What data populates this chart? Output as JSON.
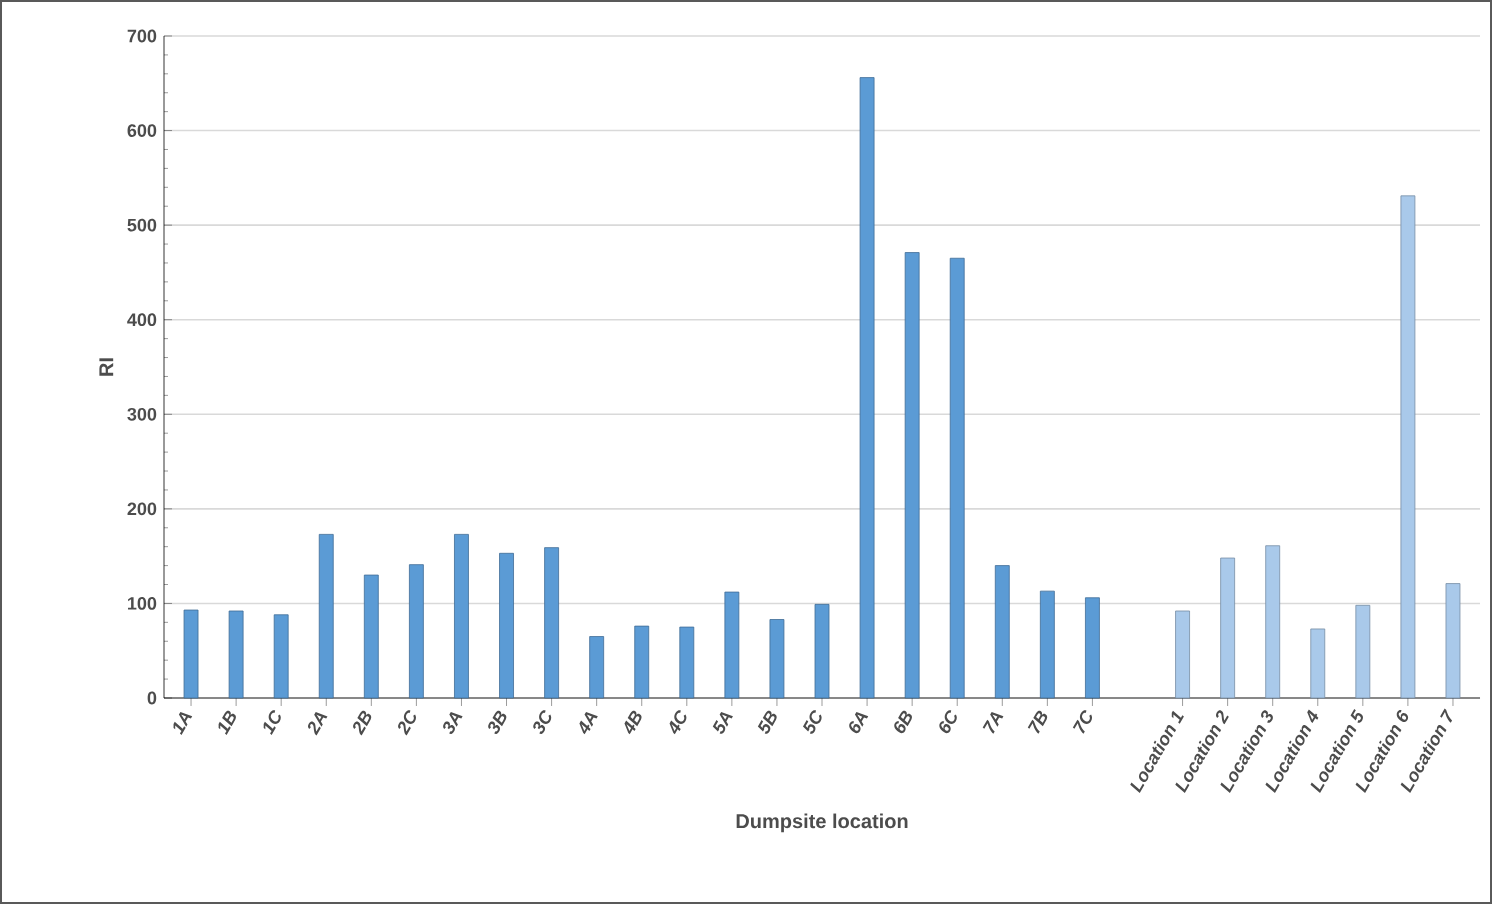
{
  "chart_data": {
    "type": "bar",
    "xlabel": "Dumpsite location",
    "ylabel": "RI",
    "categories": [
      "1A",
      "1B",
      "1C",
      "2A",
      "2B",
      "2C",
      "3A",
      "3B",
      "3C",
      "4A",
      "4B",
      "4C",
      "5A",
      "5B",
      "5C",
      "6A",
      "6B",
      "6C",
      "7A",
      "7B",
      "7C",
      null,
      "Location 1",
      "Location 2",
      "Location 3",
      "Location 4",
      "Location 5",
      "Location 6",
      "Location 7"
    ],
    "values": [
      93,
      92,
      88,
      173,
      130,
      141,
      173,
      153,
      159,
      65,
      76,
      75,
      112,
      83,
      99,
      656,
      471,
      465,
      140,
      113,
      106,
      null,
      92,
      148,
      161,
      73,
      98,
      531,
      121
    ],
    "colors": [
      "#5b9bd5",
      "#5b9bd5",
      "#5b9bd5",
      "#5b9bd5",
      "#5b9bd5",
      "#5b9bd5",
      "#5b9bd5",
      "#5b9bd5",
      "#5b9bd5",
      "#5b9bd5",
      "#5b9bd5",
      "#5b9bd5",
      "#5b9bd5",
      "#5b9bd5",
      "#5b9bd5",
      "#5b9bd5",
      "#5b9bd5",
      "#5b9bd5",
      "#5b9bd5",
      "#5b9bd5",
      "#5b9bd5",
      "#5b9bd5",
      "#a9c9ea",
      "#a9c9ea",
      "#a9c9ea",
      "#a9c9ea",
      "#a9c9ea",
      "#a9c9ea",
      "#a9c9ea"
    ],
    "ylim": [
      0,
      700
    ],
    "yticks": [
      0,
      100,
      200,
      300,
      400,
      500,
      600,
      700
    ],
    "grid": "y"
  }
}
